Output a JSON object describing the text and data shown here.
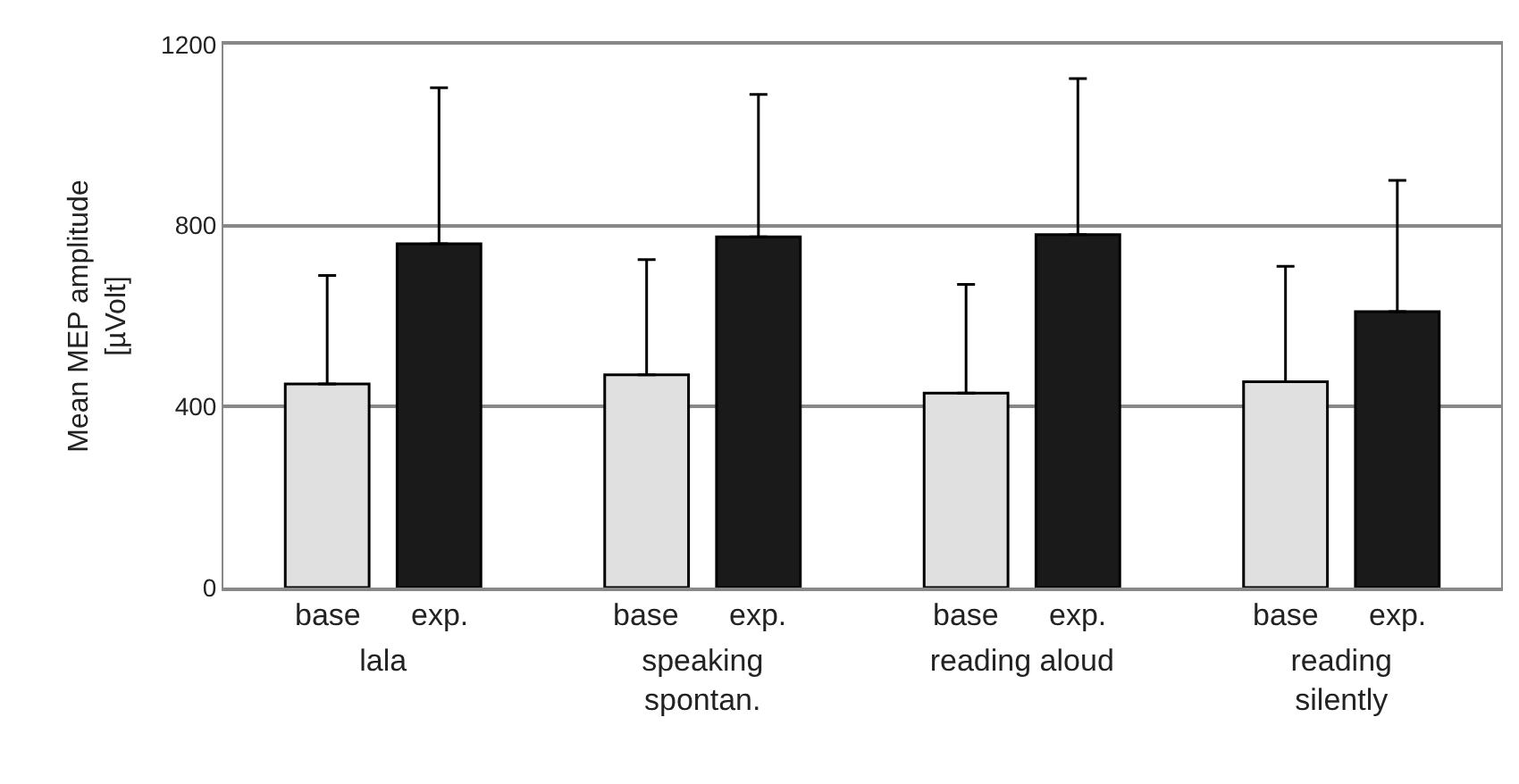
{
  "chart_data": {
    "type": "bar",
    "categories": [
      "lala",
      "speaking\nspontan.",
      "reading aloud",
      "reading\nsilently"
    ],
    "ylabel": "Mean MEP amplitude\n[µVolt]",
    "series": [
      {
        "name": "base",
        "color": "#e0e0e0",
        "values": [
          450,
          470,
          430,
          455
        ],
        "errors": [
          [
            450,
            690
          ],
          [
            470,
            725
          ],
          [
            430,
            670
          ],
          [
            455,
            710
          ]
        ]
      },
      {
        "name": "exp.",
        "color": "#1a1a1a",
        "values": [
          760,
          775,
          780,
          610
        ],
        "errors": [
          [
            760,
            1105
          ],
          [
            775,
            1090
          ],
          [
            780,
            1125
          ],
          [
            610,
            900
          ]
        ]
      }
    ],
    "ylim": [
      0,
      1200
    ],
    "yticks": [
      0,
      400,
      800,
      1200
    ],
    "grid": "y",
    "legend": false
  }
}
